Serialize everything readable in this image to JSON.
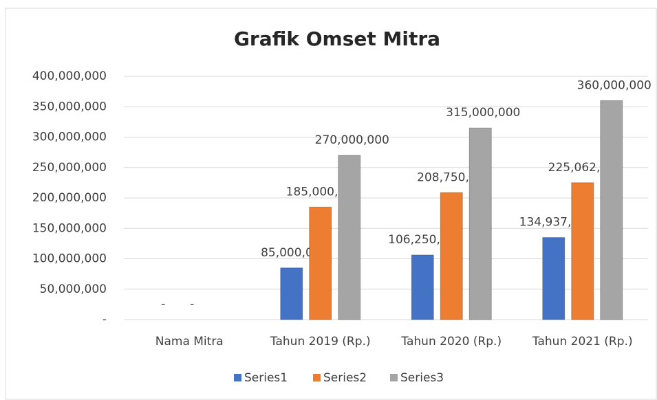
{
  "chart_data": {
    "type": "bar",
    "title": "Grafik Omset Mitra",
    "categories": [
      "Nama Mitra",
      "Tahun 2019 (Rp.)",
      "Tahun 2020 (Rp.)",
      "Tahun 2021 (Rp.)"
    ],
    "series": [
      {
        "name": "Series1",
        "color": "#4472c4",
        "values": [
          0,
          85000000,
          106250000,
          134937500
        ],
        "value_labels": [
          "-",
          "85,000,000",
          "106,250,000",
          "134,937,500"
        ]
      },
      {
        "name": "Series2",
        "color": "#ed7d31",
        "values": [
          0,
          185000000,
          208750000,
          225062500
        ],
        "value_labels": [
          "-",
          "185,000,000",
          "208,750,000",
          "225,062,500"
        ]
      },
      {
        "name": "Series3",
        "color": "#a5a5a5",
        "values": [
          null,
          270000000,
          315000000,
          360000000
        ],
        "value_labels": [
          null,
          "270,000,000",
          "315,000,000",
          "360,000,000"
        ]
      }
    ],
    "ylim": [
      0,
      400000000
    ],
    "yticks": [
      {
        "value": 0,
        "label": "-"
      },
      {
        "value": 50000000,
        "label": "50,000,000"
      },
      {
        "value": 100000000,
        "label": "100,000,000"
      },
      {
        "value": 150000000,
        "label": "150,000,000"
      },
      {
        "value": 200000000,
        "label": "200,000,000"
      },
      {
        "value": 250000000,
        "label": "250,000,000"
      },
      {
        "value": 300000000,
        "label": "300,000,000"
      },
      {
        "value": 350000000,
        "label": "350,000,000"
      },
      {
        "value": 400000000,
        "label": "400,000,000"
      }
    ],
    "grid": true,
    "legend": "bottom"
  }
}
